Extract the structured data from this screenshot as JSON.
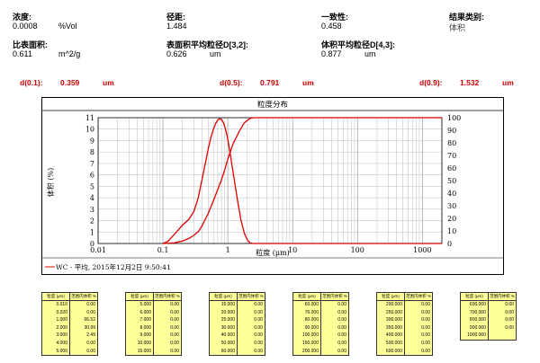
{
  "header": {
    "concentration": {
      "label": "浓度:",
      "value": "0.0008",
      "unit": "%Vol"
    },
    "span": {
      "label": "径距:",
      "value": "1.484"
    },
    "uniformity": {
      "label": "一致性:",
      "value": "0.458"
    },
    "result_type": {
      "label": "结果类别:",
      "value": "体积"
    },
    "specific_surface": {
      "label": "比表面积:",
      "value": "0.611",
      "unit": "m^2/g"
    },
    "surface_mean": {
      "label": "表面积平均粒径D[3,2]:",
      "value": "0.626",
      "unit": "um"
    },
    "volume_mean": {
      "label": "体积平均粒径D[4,3]:",
      "value": "0.877",
      "unit": "um"
    }
  },
  "dvalues": {
    "d01": {
      "label": "d(0.1):",
      "value": "0.359",
      "unit": "um"
    },
    "d05": {
      "label": "d(0.5):",
      "value": "0.791",
      "unit": "um"
    },
    "d09": {
      "label": "d(0.9):",
      "value": "1.532",
      "unit": "um"
    }
  },
  "chart_data": {
    "type": "line",
    "title": "粒度分布",
    "xlabel": "粒度 (μm)",
    "ylabel": "体积 (%)",
    "x_scale": "log",
    "xlim": [
      0.01,
      2000
    ],
    "ylim_left": [
      0,
      11
    ],
    "ylim_right": [
      0,
      100
    ],
    "x_ticks": [
      "0.01",
      "0.1",
      "1",
      "10",
      "100",
      "1000"
    ],
    "y_ticks_left": [
      "0",
      "1",
      "2",
      "3",
      "4",
      "5",
      "6",
      "7",
      "8",
      "9",
      "10",
      "11"
    ],
    "y_ticks_right": [
      "0",
      "10",
      "20",
      "30",
      "40",
      "50",
      "60",
      "70",
      "80",
      "90",
      "100"
    ],
    "legend": "WC - 平均, 2015年12月2日 9:50:41",
    "grid": true,
    "series": [
      {
        "name": "WC - 平均, 2015年12月2日 9:50:41",
        "axis": "left",
        "color": "#dd0000",
        "x": [
          0.1,
          0.12,
          0.15,
          0.2,
          0.25,
          0.3,
          0.35,
          0.4,
          0.45,
          0.5,
          0.55,
          0.6,
          0.65,
          0.7,
          0.75,
          0.8,
          0.85,
          0.9,
          0.95,
          1.0,
          1.1,
          1.2,
          1.4,
          1.6,
          1.8,
          2.0,
          2.2,
          2.5,
          2000
        ],
        "y": [
          0,
          0.2,
          0.8,
          1.6,
          2.1,
          2.8,
          4.0,
          5.6,
          7.0,
          8.3,
          9.3,
          10.0,
          10.5,
          10.8,
          10.9,
          10.85,
          10.6,
          10.2,
          9.7,
          9.1,
          7.7,
          6.3,
          3.9,
          2.0,
          0.9,
          0.3,
          0.05,
          0,
          0
        ]
      },
      {
        "name": "cumulative",
        "axis": "right",
        "color": "#dd0000",
        "x": [
          0.1,
          0.15,
          0.2,
          0.25,
          0.3,
          0.359,
          0.4,
          0.5,
          0.6,
          0.7,
          0.791,
          0.9,
          1.0,
          1.2,
          1.532,
          1.8,
          2.2,
          2.5,
          2000
        ],
        "y": [
          0,
          0.5,
          2,
          4,
          6.5,
          10,
          14,
          24,
          34,
          43,
          50,
          59,
          67,
          79,
          90,
          96,
          99.5,
          100,
          100
        ]
      }
    ]
  },
  "tables": [
    {
      "header": [
        "粒度 (μm)",
        "范围内体积 %"
      ],
      "rows": [
        [
          "0.010",
          "0.00"
        ],
        [
          "0.020",
          "0.00"
        ],
        [
          "1.000",
          "66.52"
        ],
        [
          "2.000",
          "30.99"
        ],
        [
          "3.000",
          "2.49"
        ],
        [
          "4.000",
          "0.00"
        ],
        [
          "5.000",
          "0.00"
        ]
      ]
    },
    {
      "header": [
        "粒度 (μm)",
        "范围内体积 %"
      ],
      "rows": [
        [
          "5.000",
          "0.00"
        ],
        [
          "6.000",
          "0.00"
        ],
        [
          "7.000",
          "0.00"
        ],
        [
          "8.000",
          "0.00"
        ],
        [
          "9.000",
          "0.00"
        ],
        [
          "10.000",
          "0.00"
        ],
        [
          "15.000",
          "0.00"
        ]
      ]
    },
    {
      "header": [
        "粒度 (μm)",
        "范围内体积 %"
      ],
      "rows": [
        [
          "15.000",
          "0.00"
        ],
        [
          "20.000",
          "0.00"
        ],
        [
          "25.000",
          "0.00"
        ],
        [
          "30.000",
          "0.00"
        ],
        [
          "40.000",
          "0.00"
        ],
        [
          "50.000",
          "0.00"
        ],
        [
          "60.000",
          "0.00"
        ]
      ]
    },
    {
      "header": [
        "粒度 (μm)",
        "范围内体积 %"
      ],
      "rows": [
        [
          "60.000",
          "0.00"
        ],
        [
          "70.000",
          "0.00"
        ],
        [
          "80.000",
          "0.00"
        ],
        [
          "90.000",
          "0.00"
        ],
        [
          "100.000",
          "0.00"
        ],
        [
          "150.000",
          "0.00"
        ],
        [
          "200.000",
          "0.00"
        ]
      ]
    },
    {
      "header": [
        "粒度 (μm)",
        "范围内体积 %"
      ],
      "rows": [
        [
          "200.000",
          "0.00"
        ],
        [
          "250.000",
          "0.00"
        ],
        [
          "300.000",
          "0.00"
        ],
        [
          "350.000",
          "0.00"
        ],
        [
          "400.000",
          "0.00"
        ],
        [
          "500.000",
          "0.00"
        ],
        [
          "600.000",
          "0.00"
        ]
      ]
    },
    {
      "header": [
        "粒度 (μm)",
        "范围内体积 %"
      ],
      "rows": [
        [
          "600.000",
          "0.00"
        ],
        [
          "700.000",
          "0.00"
        ],
        [
          "800.000",
          "0.00"
        ],
        [
          "900.000",
          "0.00"
        ],
        [
          "1000.000",
          ""
        ]
      ]
    }
  ]
}
